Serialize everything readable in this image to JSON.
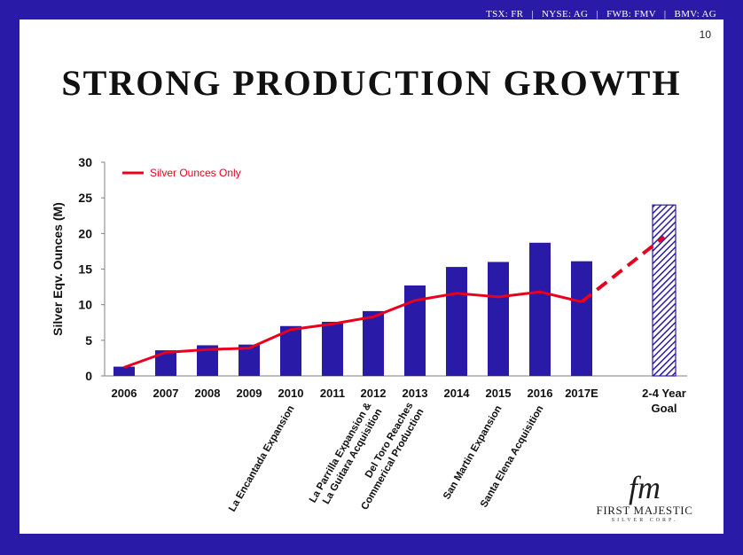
{
  "header": {
    "tickers": "TSX: FR   |   NYSE: AG   |   FWB: FMV   |   BMV: AG",
    "page_number": "10"
  },
  "title": "STRONG PRODUCTION GROWTH",
  "logo": {
    "name": "FIRST MAJESTIC",
    "sub": "SILVER CORP.",
    "monogram": "fm"
  },
  "colors": {
    "frame": "#2a1aa8",
    "bar": "#2a1aa8",
    "line": "#e8001c",
    "text": "#111111"
  },
  "chart_data": {
    "type": "bar",
    "ylabel": "Silver  Eqv. Ounces (M)",
    "ylim": [
      0,
      30
    ],
    "yticks": [
      0,
      5,
      10,
      15,
      20,
      25,
      30
    ],
    "categories": [
      "2006",
      "2007",
      "2008",
      "2009",
      "2010",
      "2011",
      "2012",
      "2013",
      "2014",
      "2015",
      "2016",
      "2017E",
      "2-4 Year Goal"
    ],
    "series": [
      {
        "name": "Silver Eqv. Ounces (M)",
        "values": [
          1.3,
          3.6,
          4.3,
          4.4,
          7.0,
          7.6,
          9.1,
          12.7,
          15.3,
          16.0,
          18.7,
          16.1,
          24.0
        ]
      },
      {
        "name": "Silver Ounces Only",
        "values": [
          1.2,
          3.3,
          3.7,
          3.9,
          6.5,
          7.3,
          8.3,
          10.6,
          11.6,
          11.1,
          11.8,
          10.4,
          19.5
        ]
      }
    ],
    "legend": {
      "label": "Silver Ounces Only",
      "position": "top-left"
    },
    "goal_pattern": "hatched",
    "annotations": [
      {
        "category": "2010",
        "text": "La Encantada Expansion"
      },
      {
        "category": "2012",
        "text": "La Parrilla Expansion & La Guitara Acquisition"
      },
      {
        "category": "2013",
        "text": "Del Toro Reaches Commerical Production"
      },
      {
        "category": "2015",
        "text": "San Martin Expansion"
      },
      {
        "category": "2016",
        "text": "Santa Elena Acquisition"
      }
    ]
  }
}
